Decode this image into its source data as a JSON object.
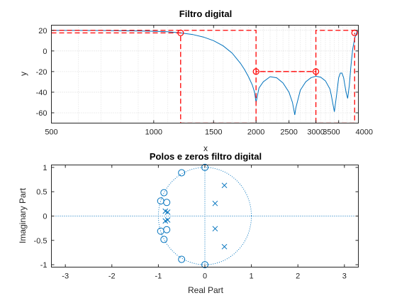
{
  "chart_data": [
    {
      "type": "line",
      "title": "Filtro digital",
      "xlabel": "x",
      "ylabel": "y",
      "xscale": "log",
      "xlim": [
        500,
        4000
      ],
      "ylim": [
        -70,
        25
      ],
      "grid": true,
      "xticks": [
        500,
        1000,
        1500,
        2000,
        2500,
        3000,
        3500,
        4000
      ],
      "xtick_labels": [
        "500",
        "1000",
        "1500",
        "2000",
        "2500",
        "3000",
        "3500",
        "4000"
      ],
      "yticks": [
        -60,
        -40,
        -20,
        0,
        20
      ],
      "ytick_labels": [
        "-60",
        "-40",
        "-20",
        "0",
        "20"
      ],
      "colors": {
        "response": "#0072BD",
        "spec": "#FF0000"
      },
      "series": [
        {
          "role": "response",
          "style": "solid",
          "x": [
            500,
            600,
            700,
            800,
            900,
            1000,
            1100,
            1200,
            1300,
            1400,
            1500,
            1600,
            1700,
            1800,
            1850,
            1900,
            1950,
            1980,
            2000,
            2040,
            2100,
            2200,
            2300,
            2400,
            2500,
            2560,
            2580,
            2600,
            2620,
            2700,
            2800,
            2900,
            3000,
            3100,
            3200,
            3300,
            3330,
            3360,
            3400,
            3450,
            3500,
            3540,
            3580,
            3620,
            3680,
            3720,
            3760,
            3800,
            3850,
            3900,
            3950,
            4000
          ],
          "y": [
            19.9,
            19.9,
            19.8,
            19.6,
            19.4,
            19.1,
            18.6,
            17.5,
            16.0,
            13.5,
            10.0,
            5.0,
            -2.0,
            -12.0,
            -18.0,
            -25.0,
            -33.0,
            -40.0,
            -50.0,
            -36.0,
            -30.0,
            -25.0,
            -26.0,
            -31.0,
            -40.0,
            -50.0,
            -56.0,
            -62.0,
            -55.0,
            -38.0,
            -30.0,
            -26.0,
            -24.5,
            -25.5,
            -29.0,
            -37.0,
            -43.0,
            -50.0,
            -59.0,
            -43.0,
            -26.0,
            -21.5,
            -21.5,
            -26.0,
            -40.0,
            -46.0,
            -34.0,
            -16.0,
            2.0,
            12.0,
            17.5,
            19.5
          ]
        },
        {
          "role": "spec-lower",
          "style": "dashed",
          "x": [
            500,
            1200,
            1200,
            2000,
            2000,
            3000,
            3000,
            3900,
            3900
          ],
          "y": [
            17.5,
            17.5,
            -70,
            -70,
            -20,
            -20,
            -70,
            -70,
            17.5
          ]
        },
        {
          "role": "spec-upper",
          "style": "dashed",
          "x": [
            500,
            2000,
            2000,
            3000,
            3000,
            4000
          ],
          "y": [
            20,
            20,
            -20,
            -20,
            20,
            20
          ]
        }
      ],
      "markers": {
        "symbol": "circle",
        "x": [
          1200,
          2000,
          3000,
          3900
        ],
        "y": [
          17.5,
          -20,
          -20,
          17.5
        ]
      }
    },
    {
      "type": "scatter",
      "title": "Polos e zeros filtro digital",
      "xlabel": "Real Part",
      "ylabel": "Imaginary Part",
      "xlim": [
        -3.3,
        3.3
      ],
      "ylim": [
        -1.05,
        1.05
      ],
      "grid": false,
      "xticks": [
        -3,
        -2,
        -1,
        0,
        1,
        2,
        3
      ],
      "xtick_labels": [
        "-3",
        "-2",
        "-1",
        "0",
        "1",
        "2",
        "3"
      ],
      "yticks": [
        -1,
        -0.5,
        0,
        0.5,
        1
      ],
      "ytick_labels": [
        "-1",
        "-0.5",
        "0",
        "0.5",
        "1"
      ],
      "color": "#0072BD",
      "unit_circle": true,
      "zeros": {
        "symbol": "circle",
        "x": [
          0.0,
          0.0,
          -0.88,
          -0.88,
          -0.95,
          -0.95,
          -0.82,
          -0.82,
          -0.5,
          -0.5
        ],
        "y": [
          1.0,
          -1.0,
          0.48,
          -0.48,
          0.31,
          -0.31,
          0.28,
          -0.28,
          0.89,
          -0.89
        ]
      },
      "poles": {
        "symbol": "x",
        "x": [
          0.42,
          0.42,
          0.22,
          0.22,
          -0.85,
          -0.85,
          -0.8,
          -0.8
        ],
        "y": [
          0.63,
          -0.63,
          0.26,
          -0.26,
          0.1,
          -0.1,
          0.08,
          -0.08
        ]
      }
    }
  ]
}
